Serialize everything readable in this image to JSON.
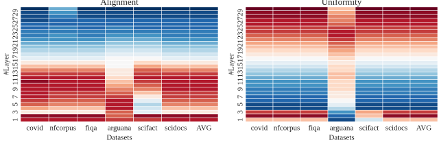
{
  "chart_data": [
    {
      "type": "heatmap",
      "title": "Alignment",
      "x_label": "Datasets",
      "y_label": "#Layer",
      "categories": [
        "covid",
        "nfcorpus",
        "fiqa",
        "arguana",
        "scifact",
        "scidocs",
        "AVG"
      ],
      "y_categories": [
        1,
        null,
        3,
        null,
        5,
        null,
        7,
        null,
        9,
        null,
        11,
        null,
        13,
        null,
        15,
        null,
        17,
        null,
        19,
        null,
        21,
        null,
        23,
        null,
        25,
        null,
        27,
        null,
        29,
        null
      ],
      "vlim": [
        -1,
        1
      ],
      "colormap": [
        "#053061",
        "#2166ac",
        "#4393c3",
        "#92c5de",
        "#d1e5f0",
        "#f7f7f7",
        "#fddbc7",
        "#f4a582",
        "#d6604d",
        "#b2182b",
        "#67001f"
      ],
      "z": [
        [
          0.8,
          0.8,
          0.8,
          0.7,
          0.7,
          0.8,
          0.8
        ],
        [
          0.9,
          0.9,
          0.9,
          0.6,
          0.9,
          0.9,
          0.9
        ],
        [
          0.1,
          0.1,
          0.1,
          0.6,
          -0.1,
          0.1,
          0.1
        ],
        [
          0.4,
          0.3,
          0.3,
          0.8,
          -0.2,
          0.3,
          0.3
        ],
        [
          0.6,
          0.5,
          0.5,
          0.8,
          -0.3,
          0.5,
          0.5
        ],
        [
          0.7,
          0.6,
          0.6,
          0.8,
          -0.1,
          0.6,
          0.6
        ],
        [
          0.8,
          0.7,
          0.7,
          0.7,
          0.1,
          0.7,
          0.7
        ],
        [
          0.8,
          0.7,
          0.7,
          0.6,
          0.3,
          0.7,
          0.7
        ],
        [
          0.8,
          0.8,
          0.8,
          0.5,
          0.5,
          0.8,
          0.8
        ],
        [
          0.8,
          0.8,
          0.8,
          0.4,
          0.6,
          0.8,
          0.8
        ],
        [
          0.9,
          0.8,
          0.8,
          0.3,
          0.7,
          0.8,
          0.8
        ],
        [
          0.8,
          0.8,
          0.8,
          0.2,
          0.8,
          0.8,
          0.8
        ],
        [
          0.7,
          0.7,
          0.7,
          0.1,
          0.7,
          0.7,
          0.7
        ],
        [
          0.5,
          0.5,
          0.5,
          0.1,
          0.6,
          0.5,
          0.5
        ],
        [
          0.3,
          0.3,
          0.3,
          0,
          0.4,
          0.3,
          0.3
        ],
        [
          0.1,
          0.1,
          0.1,
          0,
          0.2,
          0.1,
          0.1
        ],
        [
          -0.1,
          -0.1,
          -0.1,
          0,
          0,
          -0.1,
          -0.1
        ],
        [
          -0.2,
          -0.2,
          -0.2,
          -0.1,
          -0.1,
          -0.2,
          -0.2
        ],
        [
          -0.3,
          -0.3,
          -0.3,
          -0.2,
          -0.2,
          -0.3,
          -0.3
        ],
        [
          -0.4,
          -0.4,
          -0.4,
          -0.3,
          -0.3,
          -0.4,
          -0.4
        ],
        [
          -0.5,
          -0.5,
          -0.5,
          -0.4,
          -0.4,
          -0.5,
          -0.5
        ],
        [
          -0.6,
          -0.6,
          -0.6,
          -0.5,
          -0.5,
          -0.6,
          -0.6
        ],
        [
          -0.7,
          -0.6,
          -0.7,
          -0.6,
          -0.6,
          -0.7,
          -0.7
        ],
        [
          -0.7,
          -0.7,
          -0.7,
          -0.7,
          -0.7,
          -0.7,
          -0.7
        ],
        [
          -0.8,
          -0.7,
          -0.8,
          -0.7,
          -0.8,
          -0.8,
          -0.8
        ],
        [
          -0.8,
          -0.8,
          -0.8,
          -0.8,
          -0.8,
          -0.8,
          -0.8
        ],
        [
          -0.9,
          -0.8,
          -0.8,
          -0.8,
          -0.8,
          -0.8,
          -0.8
        ],
        [
          -0.9,
          -0.7,
          -0.9,
          -0.9,
          -0.9,
          -0.9,
          -0.9
        ],
        [
          -0.9,
          -0.6,
          -0.9,
          -0.9,
          -0.9,
          -0.9,
          -0.9
        ],
        [
          -1,
          -0.5,
          -1,
          -1,
          -1,
          -1,
          -1
        ]
      ]
    },
    {
      "type": "heatmap",
      "title": "Uniformity",
      "x_label": "Datasets",
      "y_label": "#Layer",
      "categories": [
        "covid",
        "nfcorpus",
        "fiqa",
        "arguana",
        "scifact",
        "scidocs",
        "AVG"
      ],
      "y_categories": [
        1,
        null,
        3,
        null,
        5,
        null,
        7,
        null,
        9,
        null,
        11,
        null,
        13,
        null,
        15,
        null,
        17,
        null,
        19,
        null,
        21,
        null,
        23,
        null,
        25,
        null,
        27,
        null,
        29,
        null
      ],
      "vlim": [
        -1,
        1
      ],
      "colormap": [
        "#053061",
        "#2166ac",
        "#4393c3",
        "#92c5de",
        "#d1e5f0",
        "#f7f7f7",
        "#fddbc7",
        "#f4a582",
        "#d6604d",
        "#b2182b",
        "#67001f"
      ],
      "z": [
        [
          0.3,
          0.3,
          0.3,
          -0.9,
          -0.2,
          0.3,
          0.3
        ],
        [
          0.9,
          0.9,
          0.9,
          -0.8,
          0.3,
          0.9,
          0.9
        ],
        [
          0.7,
          0.7,
          0.7,
          -0.6,
          0.4,
          0.7,
          0.7
        ],
        [
          -0.9,
          -0.9,
          -0.9,
          -0.3,
          -0.9,
          -0.9,
          -0.9
        ],
        [
          -0.9,
          -0.9,
          -0.9,
          -0.1,
          -0.9,
          -0.9,
          -0.9
        ],
        [
          -0.8,
          -0.8,
          -0.8,
          0,
          -0.8,
          -0.8,
          -0.8
        ],
        [
          -0.8,
          -0.8,
          -0.8,
          0.1,
          -0.8,
          -0.8,
          -0.8
        ],
        [
          -0.7,
          -0.7,
          -0.7,
          0.1,
          -0.7,
          -0.7,
          -0.7
        ],
        [
          -0.7,
          -0.7,
          -0.7,
          0.2,
          -0.7,
          -0.7,
          -0.7
        ],
        [
          -0.6,
          -0.6,
          -0.6,
          0.2,
          -0.6,
          -0.6,
          -0.6
        ],
        [
          -0.6,
          -0.6,
          -0.6,
          0.2,
          -0.6,
          -0.6,
          -0.6
        ],
        [
          -0.5,
          -0.5,
          -0.5,
          0.3,
          -0.5,
          -0.5,
          -0.5
        ],
        [
          -0.4,
          -0.4,
          -0.4,
          0.3,
          -0.4,
          -0.4,
          -0.4
        ],
        [
          -0.3,
          -0.3,
          -0.3,
          0.2,
          -0.3,
          -0.3,
          -0.3
        ],
        [
          -0.2,
          -0.2,
          -0.2,
          0.2,
          -0.2,
          -0.2,
          -0.2
        ],
        [
          -0.1,
          -0.1,
          -0.1,
          0.1,
          -0.1,
          -0.1,
          -0.1
        ],
        [
          0,
          0,
          0,
          0.2,
          0,
          0,
          0
        ],
        [
          0.1,
          0.1,
          0.1,
          0.3,
          0.1,
          0.1,
          0.1
        ],
        [
          0.2,
          0.2,
          0.2,
          0.4,
          0.2,
          0.2,
          0.2
        ],
        [
          0.3,
          0.3,
          0.3,
          0.5,
          0.3,
          0.3,
          0.3
        ],
        [
          0.4,
          0.4,
          0.4,
          0.6,
          0.4,
          0.4,
          0.4
        ],
        [
          0.5,
          0.5,
          0.5,
          0.7,
          0.5,
          0.5,
          0.5
        ],
        [
          0.6,
          0.6,
          0.6,
          0.8,
          0.6,
          0.6,
          0.6
        ],
        [
          0.7,
          0.7,
          0.7,
          0.8,
          0.7,
          0.7,
          0.7
        ],
        [
          0.7,
          0.7,
          0.7,
          0.7,
          0.7,
          0.7,
          0.7
        ],
        [
          0.8,
          0.8,
          0.8,
          0.6,
          0.8,
          0.8,
          0.8
        ],
        [
          0.8,
          0.8,
          0.8,
          0.5,
          0.8,
          0.8,
          0.8
        ],
        [
          0.9,
          0.9,
          0.9,
          0.5,
          0.9,
          0.9,
          0.9
        ],
        [
          0.9,
          0.9,
          0.9,
          0.4,
          0.9,
          0.9,
          0.9
        ],
        [
          1,
          1,
          1,
          0.3,
          1,
          1,
          1
        ]
      ]
    }
  ]
}
